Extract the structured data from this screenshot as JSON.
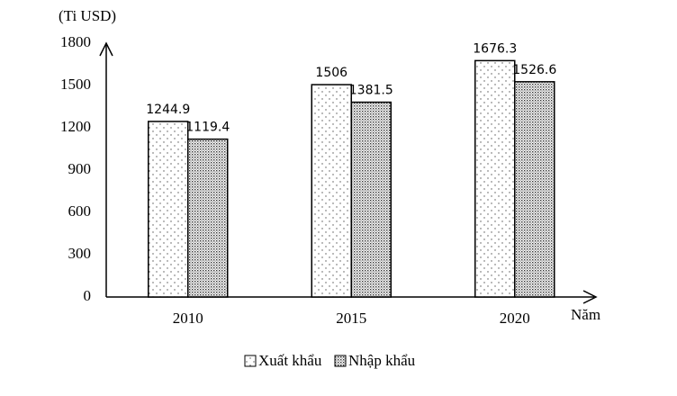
{
  "chart_data": {
    "type": "bar",
    "y_axis_label": "(Ti USD)",
    "x_axis_label": "Năm",
    "categories": [
      "2010",
      "2015",
      "2020"
    ],
    "series": [
      {
        "name": "Xuất khẩu",
        "color": "#000000",
        "pattern": "sparse-dots",
        "values": [
          1244.9,
          1506,
          1676.3
        ]
      },
      {
        "name": "Nhập khẩu",
        "color": "#000000",
        "pattern": "dense-dots",
        "values": [
          1119.4,
          1381.5,
          1526.6
        ]
      }
    ],
    "ylim": [
      0,
      1800
    ],
    "yticks": [
      0,
      300,
      600,
      900,
      1200,
      1500,
      1800
    ],
    "grid": false,
    "legend": "bottom"
  }
}
